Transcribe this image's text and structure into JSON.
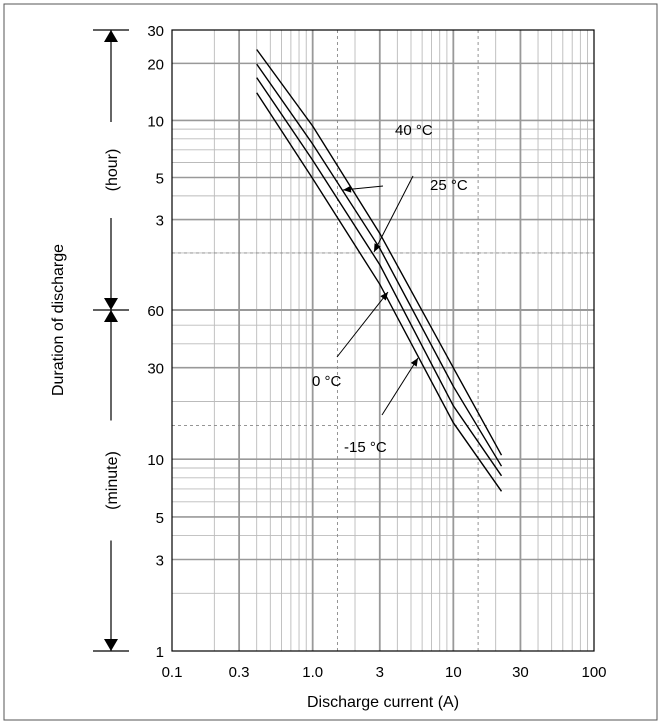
{
  "chart_data": {
    "type": "line",
    "xlabel": "Discharge current (A)",
    "ylabel": "Duration of discharge",
    "x_scale": "log",
    "xlim": [
      0.1,
      100
    ],
    "x_ticks": [
      0.1,
      0.3,
      1.0,
      3,
      10,
      30,
      100
    ],
    "x_tick_labels": [
      "0.1",
      "0.3",
      "1.0",
      "3",
      "10",
      "30",
      "100"
    ],
    "y_unit_bands": [
      {
        "label": "(hour)",
        "ticks": [
          "30",
          "20",
          "10",
          "5",
          "3"
        ]
      },
      {
        "label": "(minute)",
        "ticks": [
          "60",
          "30",
          "10",
          "5",
          "3",
          "1"
        ]
      }
    ],
    "y_scale": "log",
    "y_range_minutes": [
      1,
      1800
    ],
    "grid": true,
    "series": [
      {
        "name": "40 °C",
        "x": [
          0.4,
          1.0,
          3,
          10,
          22
        ],
        "y_minutes": [
          1420,
          560,
          152,
          30,
          10.5
        ]
      },
      {
        "name": "25 °C",
        "x": [
          0.4,
          1.0,
          3,
          10,
          22
        ],
        "y_minutes": [
          1190,
          450,
          127,
          24,
          9.2
        ]
      },
      {
        "name": "0 °C",
        "x": [
          0.4,
          1.0,
          3,
          10,
          22
        ],
        "y_minutes": [
          1010,
          370,
          104,
          19,
          8.2
        ]
      },
      {
        "name": "-15 °C",
        "x": [
          0.4,
          1.0,
          3,
          10,
          22
        ],
        "y_minutes": [
          840,
          296,
          82,
          15.5,
          6.8
        ]
      }
    ]
  }
}
